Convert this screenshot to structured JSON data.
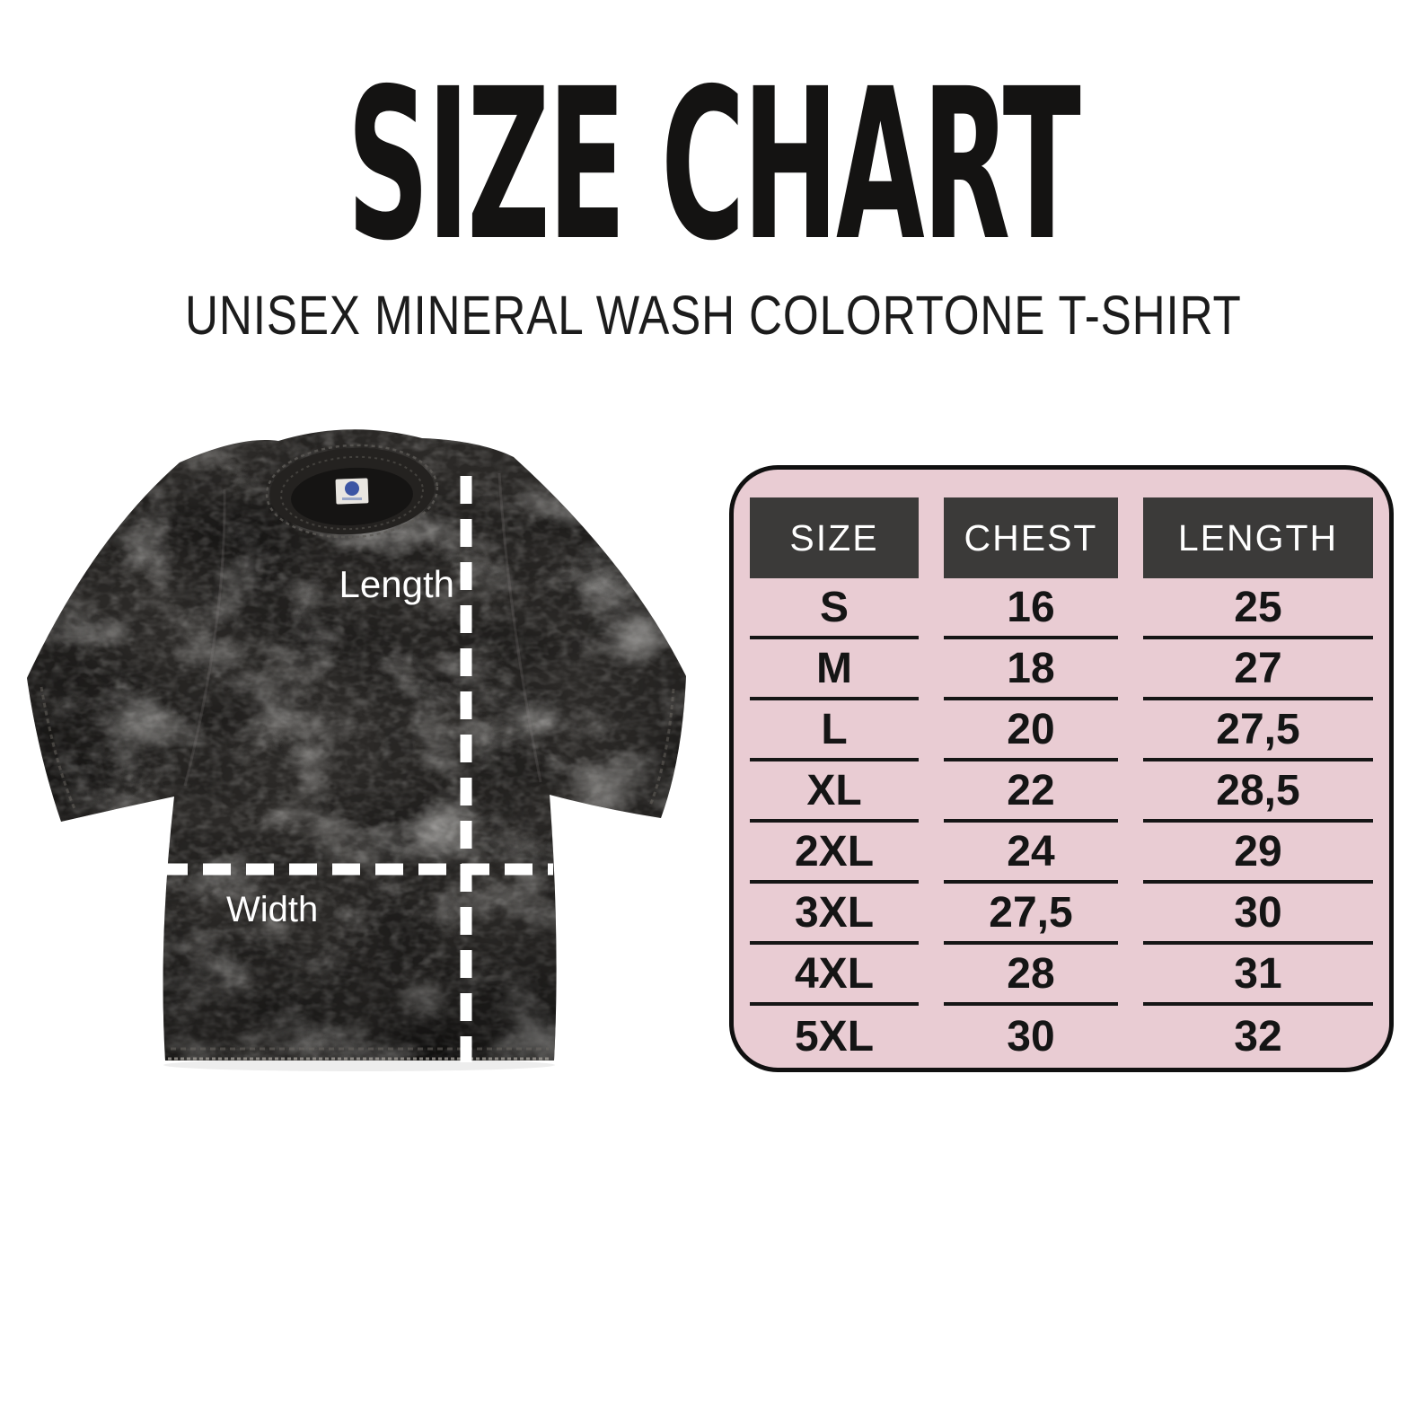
{
  "header": {
    "title": "SIZE CHART",
    "subtitle": "UNISEX MINERAL WASH COLORTONE T-SHIRT"
  },
  "diagram": {
    "length_label": "Length",
    "width_label": "Width",
    "shirt_color": "#2b2927",
    "dash_color": "#ffffff"
  },
  "table": {
    "columns": [
      "SIZE",
      "CHEST",
      "LENGTH"
    ],
    "rows": [
      [
        "S",
        "16",
        "25"
      ],
      [
        "M",
        "18",
        "27"
      ],
      [
        "L",
        "20",
        "27,5"
      ],
      [
        "XL",
        "22",
        "28,5"
      ],
      [
        "2XL",
        "24",
        "29"
      ],
      [
        "3XL",
        "27,5",
        "30"
      ],
      [
        "4XL",
        "28",
        "31"
      ],
      [
        "5XL",
        "30",
        "32"
      ]
    ],
    "colors": {
      "panel_bg": "#e9ccd3",
      "header_bg": "#3b3a39",
      "header_text": "#ffffff",
      "cell_text": "#151515",
      "border": "#101010"
    }
  },
  "chart_data": {
    "type": "table",
    "title": "SIZE CHART",
    "subtitle": "UNISEX MINERAL WASH COLORTONE T-SHIRT",
    "columns": [
      "SIZE",
      "CHEST",
      "LENGTH"
    ],
    "rows": [
      [
        "S",
        "16",
        "25"
      ],
      [
        "M",
        "18",
        "27"
      ],
      [
        "L",
        "20",
        "27,5"
      ],
      [
        "XL",
        "22",
        "28,5"
      ],
      [
        "2XL",
        "24",
        "29"
      ],
      [
        "3XL",
        "27,5",
        "30"
      ],
      [
        "4XL",
        "28",
        "31"
      ],
      [
        "5XL",
        "30",
        "32"
      ]
    ]
  }
}
